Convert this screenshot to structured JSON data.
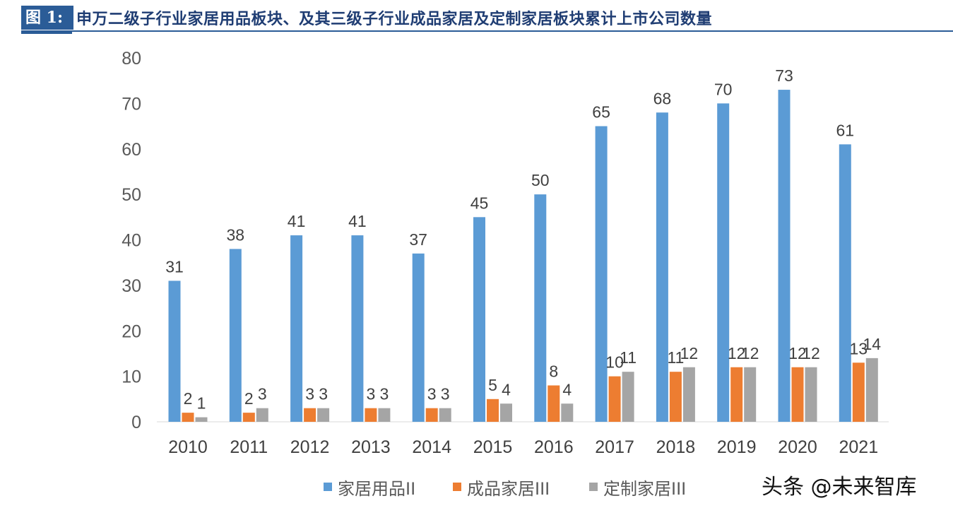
{
  "header": {
    "figure_label": "图 1:",
    "title": "申万二级子行业家居用品板块、及其三级子行业成品家居及定制家居板块累计上市公司数量"
  },
  "watermark": "头条 @未来智库",
  "chart_data": {
    "type": "bar",
    "title": "申万二级子行业家居用品板块、及其三级子行业成品家居及定制家居板块累计上市公司数量",
    "categories": [
      "2010",
      "2011",
      "2012",
      "2013",
      "2014",
      "2015",
      "2016",
      "2017",
      "2018",
      "2019",
      "2020",
      "2021"
    ],
    "series": [
      {
        "name": "家居用品II",
        "color": "#5b9bd5",
        "values": [
          31,
          38,
          41,
          41,
          37,
          45,
          50,
          65,
          68,
          70,
          73,
          61
        ]
      },
      {
        "name": "成品家居III",
        "color": "#ed7d31",
        "values": [
          2,
          2,
          3,
          3,
          3,
          5,
          8,
          10,
          11,
          12,
          12,
          13
        ]
      },
      {
        "name": "定制家居III",
        "color": "#a5a5a5",
        "values": [
          1,
          3,
          3,
          3,
          3,
          4,
          4,
          11,
          12,
          12,
          12,
          14
        ]
      }
    ],
    "ylim": [
      0,
      80
    ],
    "yticks": [
      0,
      10,
      20,
      30,
      40,
      50,
      60,
      70,
      80
    ],
    "grid": false,
    "data_labels": true,
    "legend": "bottom"
  }
}
